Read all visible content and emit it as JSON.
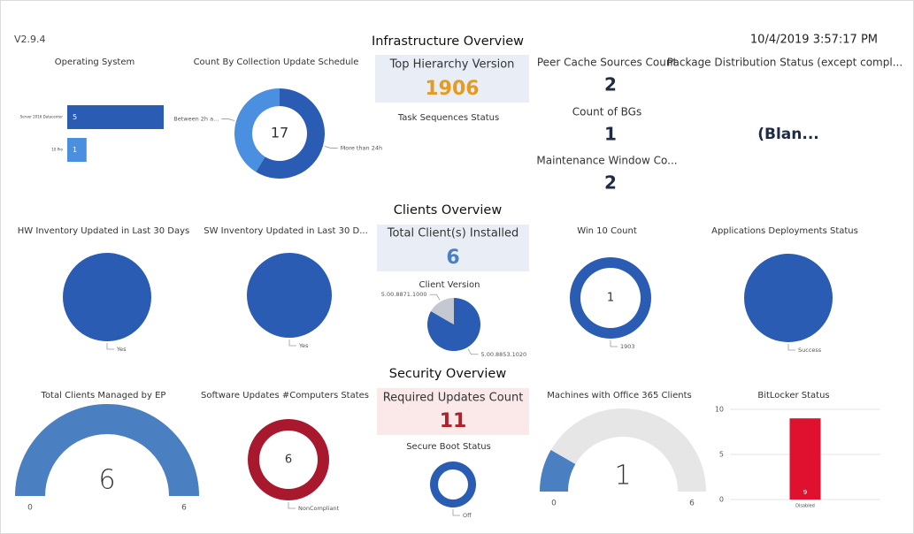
{
  "header": {
    "version": "V2.9.4",
    "timestamp": "10/4/2019 3:57:17 PM"
  },
  "sections": [
    "Infrastructure Overview",
    "Clients Overview",
    "Security Overview"
  ],
  "chart_data": [
    {
      "type": "hbar",
      "title": "Operating System",
      "categories": [
        "Server 2016 Datacenter",
        "10 Pro"
      ],
      "values": [
        5,
        1
      ],
      "colors": [
        "#2a5cb3",
        "#4a8fe0"
      ]
    },
    {
      "type": "donut",
      "title": "Count By Collection Update Schedule",
      "categories": [
        "More than 24h",
        "Between 2h a..."
      ],
      "values": [
        10,
        7
      ],
      "colors": [
        "#2a5cb3",
        "#4a8fe0"
      ],
      "total": 17
    },
    {
      "type": "card",
      "title": "Top Hierarchy Version",
      "value": 1906,
      "color": "#e39b22",
      "background": "#e9eef6"
    },
    {
      "type": "empty",
      "title": "Task Sequences Status"
    },
    {
      "type": "card",
      "title": "Peer Cache Sources Count",
      "value": 2,
      "color": "#1f2a44"
    },
    {
      "type": "card",
      "title": "Count of BGs",
      "value": 1,
      "color": "#1f2a44"
    },
    {
      "type": "card",
      "title": "Maintenance Window Co...",
      "value": 2,
      "color": "#1f2a44"
    },
    {
      "type": "card",
      "title": "Package Distribution Status (except compl...",
      "value": "(Blan...",
      "color": "#1f2a44"
    },
    {
      "type": "pie",
      "title": "HW Inventory Updated in Last 30 Days",
      "categories": [
        "Yes"
      ],
      "values": [
        6
      ],
      "colors": [
        "#2a5cb3"
      ]
    },
    {
      "type": "pie",
      "title": "SW Inventory Updated in Last 30 D...",
      "categories": [
        "Yes"
      ],
      "values": [
        6
      ],
      "colors": [
        "#2a5cb3"
      ]
    },
    {
      "type": "card",
      "title": "Total Client(s) Installed",
      "value": 6,
      "color": "#4a7fc1",
      "background": "#e9eef6"
    },
    {
      "type": "pie",
      "title": "Client Version",
      "categories": [
        "5.00.8853.1020",
        "5.00.8871.1000"
      ],
      "values": [
        5,
        1
      ],
      "colors": [
        "#2a5cb3",
        "#c4c8d0"
      ]
    },
    {
      "type": "donut",
      "title": "Win 10 Count",
      "categories": [
        "1903"
      ],
      "values": [
        1
      ],
      "colors": [
        "#2a5cb3"
      ],
      "total": 1
    },
    {
      "type": "pie",
      "title": "Applications Deployments Status",
      "categories": [
        "Success"
      ],
      "values": [
        6
      ],
      "colors": [
        "#2a5cb3"
      ]
    },
    {
      "type": "gauge",
      "title": "Total Clients Managed by EP",
      "value": 6,
      "range": [
        0,
        6
      ],
      "color": "#4a7fc1",
      "track": "#e6e6e6"
    },
    {
      "type": "donut",
      "title": "Software Updates #Computers States",
      "categories": [
        "NonCompliant"
      ],
      "values": [
        6
      ],
      "colors": [
        "#a8192e"
      ],
      "total": 6
    },
    {
      "type": "card",
      "title": "Required Updates Count",
      "value": 11,
      "color": "#b0202a",
      "background": "#fbe9ea"
    },
    {
      "type": "donut",
      "title": "Secure Boot Status",
      "categories": [
        "Off"
      ],
      "values": [
        6
      ],
      "colors": [
        "#2a5cb3"
      ]
    },
    {
      "type": "gauge",
      "title": "Machines with Office 365 Clients",
      "value": 1,
      "range": [
        0,
        6
      ],
      "color": "#4a7fc1",
      "track": "#e6e6e6"
    },
    {
      "type": "bar",
      "title": "BitLocker Status",
      "categories": [
        "Disabled"
      ],
      "values": [
        9
      ],
      "color": "#e0102f",
      "ylim": [
        0,
        10
      ],
      "yticks": [
        0,
        5,
        10
      ],
      "grid": true
    }
  ]
}
